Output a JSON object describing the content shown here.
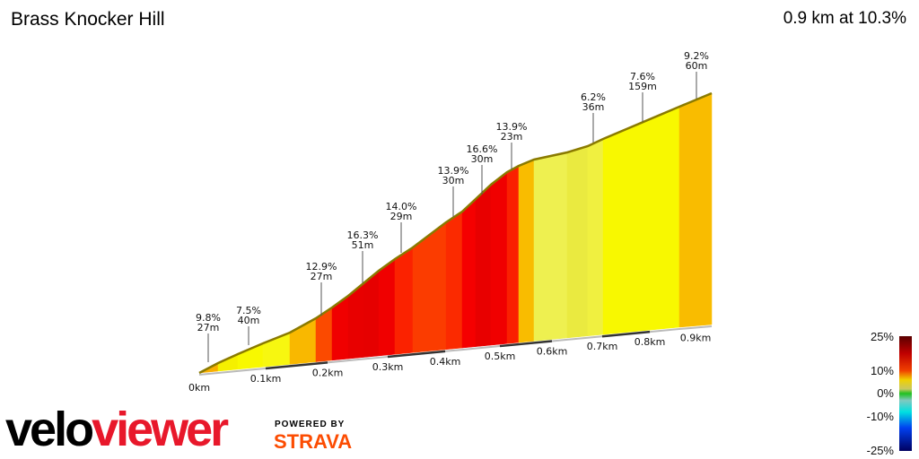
{
  "header": {
    "title": "Brass Knocker Hill",
    "summary": "0.9 km at 10.3%"
  },
  "chart_data": {
    "type": "area",
    "title": "Brass Knocker Hill",
    "xlabel": "",
    "ylabel": "",
    "x_ticks": [
      "0km",
      "0.1km",
      "0.2km",
      "0.3km",
      "0.4km",
      "0.5km",
      "0.6km",
      "0.7km",
      "0.8km",
      "0.9km"
    ],
    "xlim": [
      0,
      0.9
    ],
    "segment_colors": [
      "#f9b000",
      "#f5f000",
      "#f8f800",
      "#f7f710",
      "#f9b800",
      "#fb4a00",
      "#f00000",
      "#e80000",
      "#e60000",
      "#f00000",
      "#fb2200",
      "#fb3c00",
      "#fb2a00",
      "#f50000",
      "#e80000",
      "#f00000",
      "#fa2000",
      "#f9bc00",
      "#eef050",
      "#eaea40",
      "#f0f040",
      "#f8f800",
      "#f9bc00"
    ],
    "annotations": [
      {
        "grade": "9.8%",
        "length": "27m"
      },
      {
        "grade": "7.5%",
        "length": "40m"
      },
      {
        "grade": "12.9%",
        "length": "27m"
      },
      {
        "grade": "16.3%",
        "length": "51m"
      },
      {
        "grade": "14.0%",
        "length": "29m"
      },
      {
        "grade": "13.9%",
        "length": "30m"
      },
      {
        "grade": "16.6%",
        "length": "30m"
      },
      {
        "grade": "13.9%",
        "length": "23m"
      },
      {
        "grade": "6.2%",
        "length": "36m"
      },
      {
        "grade": "7.6%",
        "length": "159m"
      },
      {
        "grade": "9.2%",
        "length": "60m"
      }
    ],
    "legend": {
      "labels": [
        "25%",
        "10%",
        "0%",
        "-10%",
        "-25%"
      ],
      "placement": "bottom-right"
    }
  },
  "branding": {
    "logo_left": "velo",
    "logo_right": "viewer",
    "powered": "POWERED BY",
    "strava": "STRAVA"
  }
}
